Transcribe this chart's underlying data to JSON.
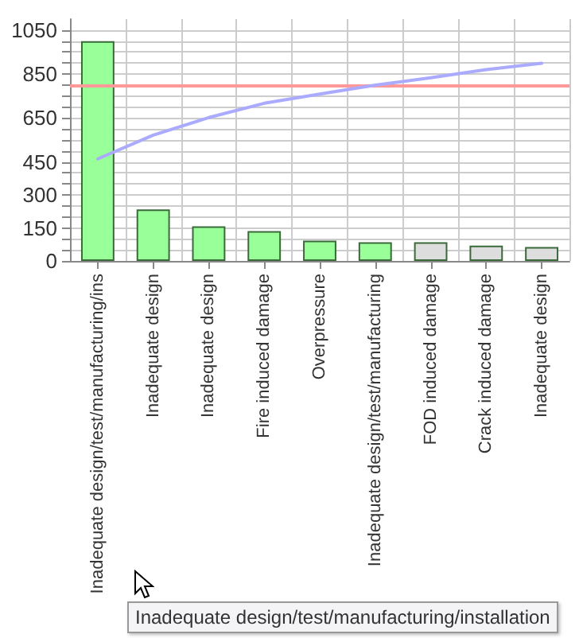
{
  "chart_data": {
    "type": "bar",
    "categories": [
      "Inadequate design/test/manufacturing/ins",
      "Inadequate design",
      "Inadequate design",
      "Fire induced damage",
      "Overpressure",
      "Inadequate design/test/manufacturing",
      "FOD induced damage",
      "Crack induced damage",
      "Inadequate design"
    ],
    "series": [
      {
        "colors": [
          "#99ff99",
          "#99ff99",
          "#99ff99",
          "#99ff99",
          "#99ff99",
          "#99ff99",
          "#dddddd",
          "#dddddd",
          "#dddddd"
        ],
        "values": [
          1000,
          234,
          157,
          136,
          92,
          85,
          85,
          70,
          63
        ]
      },
      {
        "type": "line",
        "color": "#aaaaff",
        "values": [
          464,
          572,
          652,
          717,
          759,
          800,
          833,
          870,
          899
        ]
      }
    ],
    "ylim": [
      0,
      1100
    ],
    "yticks": [
      0,
      {
        "value": 50,
        "label": null
      },
      {
        "value": 100,
        "label": null
      },
      150,
      {
        "value": 200,
        "label": null
      },
      {
        "value": 250,
        "label": null
      },
      300,
      {
        "value": 350,
        "label": null
      },
      {
        "value": 400,
        "label": null
      },
      450,
      {
        "value": 500,
        "label": null
      },
      {
        "value": 550,
        "label": null
      },
      {
        "value": 600,
        "label": null
      },
      650,
      {
        "value": 700,
        "label": null
      },
      {
        "value": 750,
        "label": null
      },
      {
        "value": 800,
        "label": null
      },
      850,
      {
        "value": 900,
        "label": null
      },
      {
        "value": 950,
        "label": null
      },
      {
        "value": 1000,
        "label": null
      },
      1050
    ],
    "ref_lines": [
      {
        "axis": "y",
        "value": 800,
        "color": "#ff9999"
      }
    ],
    "annotations": [
      "Inadequate design/test/manufacturing/installation"
    ],
    "grid": true,
    "marker": "none"
  }
}
